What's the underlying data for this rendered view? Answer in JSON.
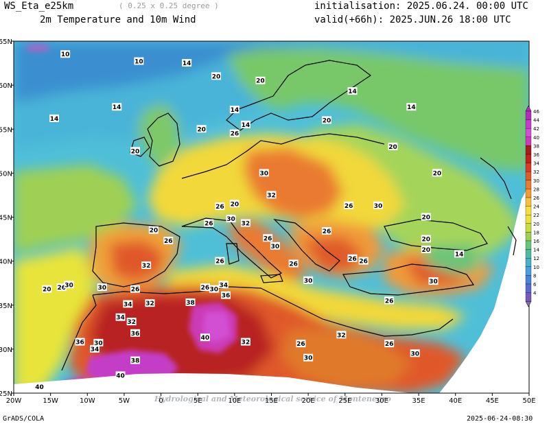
{
  "header": {
    "model": "WS_Eta_e25km",
    "resolution": "( 0.25 x 0.25 degree )",
    "product": "2m Temperature and 10m Wind",
    "init": "initialisation: 2025.06.24. 00:00 UTC",
    "valid": "valid(+66h): 2025.JUN.26 18:00 UTC"
  },
  "footer": {
    "left": "GrADS/COLA",
    "right": "2025-06-24-08:30"
  },
  "watermark": "Hydrological and Meteorological service of Montenegro",
  "axes": {
    "lon_labels": [
      "20W",
      "15W",
      "10W",
      "5W",
      "0",
      "5E",
      "10E",
      "15E",
      "20E",
      "25E",
      "30E",
      "35E",
      "40E",
      "45E",
      "50E"
    ],
    "lat_labels": [
      "65N",
      "60N",
      "55N",
      "50N",
      "45N",
      "40N",
      "35N",
      "30N",
      "25N"
    ]
  },
  "colorbar": {
    "levels": [
      46,
      44,
      42,
      40,
      38,
      36,
      34,
      32,
      30,
      28,
      26,
      24,
      22,
      20,
      18,
      16,
      14,
      12,
      10,
      8,
      6,
      4
    ],
    "colors": [
      "#b22fb5",
      "#c43cc7",
      "#d24fd4",
      "#cc3ab6",
      "#a51c1c",
      "#c02020",
      "#d83a2a",
      "#e05a2a",
      "#ea7a30",
      "#f09a3a",
      "#f5c040",
      "#f5dd3a",
      "#e8e43a",
      "#c9dc45",
      "#9fd055",
      "#6cc47a",
      "#4fb8a0",
      "#46b0c8",
      "#4a9fd8",
      "#4a84d0",
      "#5a6ccc",
      "#7a5ab8"
    ]
  },
  "isotherm_labels": [
    {
      "text": "10",
      "lon": -13,
      "lat": 63.5
    },
    {
      "text": "10",
      "lon": -3,
      "lat": 62.7
    },
    {
      "text": "14",
      "lon": -14.5,
      "lat": 56.2
    },
    {
      "text": "14",
      "lon": -6,
      "lat": 57.5
    },
    {
      "text": "14",
      "lon": 3.5,
      "lat": 62.5
    },
    {
      "text": "20",
      "lon": 7.5,
      "lat": 61
    },
    {
      "text": "20",
      "lon": 13.5,
      "lat": 60.5
    },
    {
      "text": "14",
      "lon": 26,
      "lat": 59.3
    },
    {
      "text": "14",
      "lon": 34,
      "lat": 57.5
    },
    {
      "text": "14",
      "lon": 10,
      "lat": 57.2
    },
    {
      "text": "14",
      "lon": 11.5,
      "lat": 55.5
    },
    {
      "text": "20",
      "lon": 22.5,
      "lat": 56
    },
    {
      "text": "20",
      "lon": 5.5,
      "lat": 55
    },
    {
      "text": "20",
      "lon": -3.5,
      "lat": 52.5
    },
    {
      "text": "26",
      "lon": 10,
      "lat": 54.5
    },
    {
      "text": "20",
      "lon": 31.5,
      "lat": 53
    },
    {
      "text": "30",
      "lon": 14,
      "lat": 50
    },
    {
      "text": "20",
      "lon": 10,
      "lat": 46.5
    },
    {
      "text": "32",
      "lon": 15,
      "lat": 47.5
    },
    {
      "text": "26",
      "lon": 8,
      "lat": 46.2
    },
    {
      "text": "26",
      "lon": 25.5,
      "lat": 46.3
    },
    {
      "text": "30",
      "lon": 29.5,
      "lat": 46.3
    },
    {
      "text": "20",
      "lon": 37.5,
      "lat": 50
    },
    {
      "text": "20",
      "lon": 36,
      "lat": 45
    },
    {
      "text": "26",
      "lon": 6.5,
      "lat": 44.3
    },
    {
      "text": "30",
      "lon": 9.5,
      "lat": 44.8
    },
    {
      "text": "32",
      "lon": 11.5,
      "lat": 44.3
    },
    {
      "text": "20",
      "lon": -1,
      "lat": 43.5
    },
    {
      "text": "26",
      "lon": 1,
      "lat": 42.3
    },
    {
      "text": "26",
      "lon": 14.5,
      "lat": 42.6
    },
    {
      "text": "26",
      "lon": 22.5,
      "lat": 43.4
    },
    {
      "text": "30",
      "lon": 15.5,
      "lat": 41.7
    },
    {
      "text": "20",
      "lon": 36,
      "lat": 42.5
    },
    {
      "text": "20",
      "lon": 36,
      "lat": 41.3
    },
    {
      "text": "14",
      "lon": 40.5,
      "lat": 40.8
    },
    {
      "text": "26",
      "lon": 8,
      "lat": 40
    },
    {
      "text": "26",
      "lon": 18,
      "lat": 39.7
    },
    {
      "text": "26",
      "lon": 26,
      "lat": 40.3
    },
    {
      "text": "26",
      "lon": 27.5,
      "lat": 40
    },
    {
      "text": "32",
      "lon": -2,
      "lat": 39.5
    },
    {
      "text": "20",
      "lon": -15.5,
      "lat": 36.8
    },
    {
      "text": "26",
      "lon": -13.5,
      "lat": 37
    },
    {
      "text": "30",
      "lon": -12.5,
      "lat": 37.3
    },
    {
      "text": "30",
      "lon": -8,
      "lat": 37
    },
    {
      "text": "26",
      "lon": -3.5,
      "lat": 36.8
    },
    {
      "text": "30",
      "lon": 20,
      "lat": 37.8
    },
    {
      "text": "30",
      "lon": 37,
      "lat": 37.7
    },
    {
      "text": "26",
      "lon": 6,
      "lat": 37
    },
    {
      "text": "30",
      "lon": 7.2,
      "lat": 36.8
    },
    {
      "text": "34",
      "lon": 8.5,
      "lat": 37.3
    },
    {
      "text": "36",
      "lon": 8.8,
      "lat": 36.1
    },
    {
      "text": "26",
      "lon": 31,
      "lat": 35.5
    },
    {
      "text": "34",
      "lon": -4.5,
      "lat": 35.1
    },
    {
      "text": "32",
      "lon": -1.5,
      "lat": 35.2
    },
    {
      "text": "38",
      "lon": 4,
      "lat": 35.3
    },
    {
      "text": "34",
      "lon": -5.5,
      "lat": 33.6
    },
    {
      "text": "32",
      "lon": -4,
      "lat": 33.1
    },
    {
      "text": "36",
      "lon": -3.5,
      "lat": 31.8
    },
    {
      "text": "40",
      "lon": 6,
      "lat": 31.3
    },
    {
      "text": "32",
      "lon": 11.5,
      "lat": 30.8
    },
    {
      "text": "26",
      "lon": 19,
      "lat": 30.6
    },
    {
      "text": "32",
      "lon": 24.5,
      "lat": 31.6
    },
    {
      "text": "26",
      "lon": 31,
      "lat": 30.6
    },
    {
      "text": "36",
      "lon": -11,
      "lat": 30.8
    },
    {
      "text": "30",
      "lon": -8.5,
      "lat": 30.7
    },
    {
      "text": "34",
      "lon": -9,
      "lat": 30
    },
    {
      "text": "38",
      "lon": -3.5,
      "lat": 28.7
    },
    {
      "text": "30",
      "lon": 20,
      "lat": 29
    },
    {
      "text": "30",
      "lon": 34.5,
      "lat": 29.5
    },
    {
      "text": "40",
      "lon": -5.5,
      "lat": 27
    },
    {
      "text": "40",
      "lon": -16.5,
      "lat": 25.7
    }
  ]
}
